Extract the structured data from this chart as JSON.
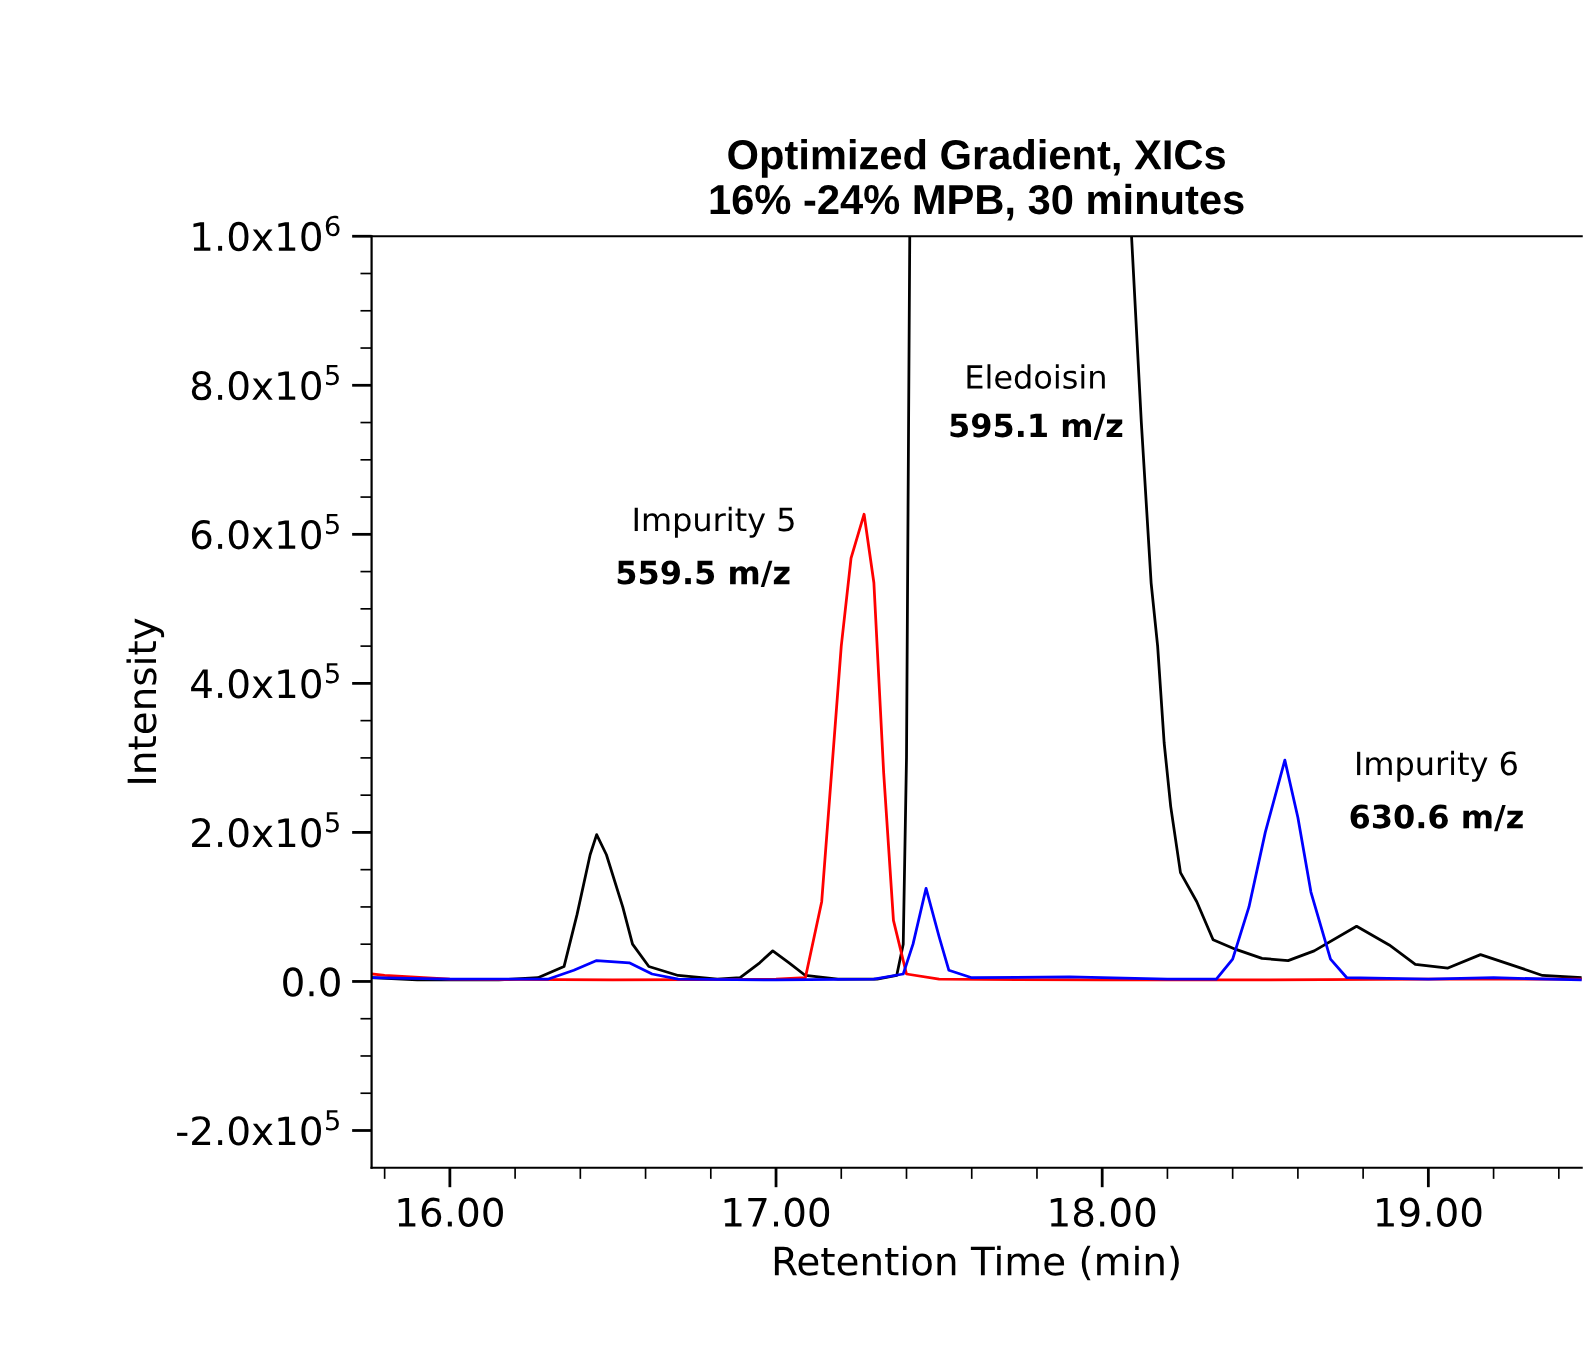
{
  "chart_data": {
    "type": "line",
    "title": "Optimized Gradient, XICs\n16% -24% MPB, 30 minutes",
    "xlabel": "Retention Time (min)",
    "ylabel": "Intensity",
    "xlim": [
      15.76,
      19.47
    ],
    "ylim": [
      -250000,
      1000000
    ],
    "xticks": [
      {
        "value": 15.8,
        "label": null
      },
      {
        "value": 16.0,
        "label": "16.00"
      },
      {
        "value": 16.2,
        "label": null
      },
      {
        "value": 16.4,
        "label": null
      },
      {
        "value": 16.6,
        "label": null
      },
      {
        "value": 16.8,
        "label": null
      },
      {
        "value": 17.0,
        "label": "17.00"
      },
      {
        "value": 17.2,
        "label": null
      },
      {
        "value": 17.4,
        "label": null
      },
      {
        "value": 17.6,
        "label": null
      },
      {
        "value": 17.8,
        "label": null
      },
      {
        "value": 18.0,
        "label": "18.00"
      },
      {
        "value": 18.2,
        "label": null
      },
      {
        "value": 18.4,
        "label": null
      },
      {
        "value": 18.6,
        "label": null
      },
      {
        "value": 18.8,
        "label": null
      },
      {
        "value": 19.0,
        "label": "19.00"
      },
      {
        "value": 19.2,
        "label": null
      },
      {
        "value": 19.4,
        "label": null
      }
    ],
    "yticks": [
      {
        "value": -200000,
        "label": "-2.0x10$^{5}$"
      },
      {
        "value": -150000,
        "label": null
      },
      {
        "value": -100000,
        "label": null
      },
      {
        "value": -50000,
        "label": null
      },
      {
        "value": 0,
        "label": "0.0"
      },
      {
        "value": 50000,
        "label": null
      },
      {
        "value": 100000,
        "label": null
      },
      {
        "value": 150000,
        "label": null
      },
      {
        "value": 200000,
        "label": "2.0x10$^{5}$"
      },
      {
        "value": 250000,
        "label": null
      },
      {
        "value": 300000,
        "label": null
      },
      {
        "value": 350000,
        "label": null
      },
      {
        "value": 400000,
        "label": "4.0x10$^{5}$"
      },
      {
        "value": 450000,
        "label": null
      },
      {
        "value": 500000,
        "label": null
      },
      {
        "value": 550000,
        "label": null
      },
      {
        "value": 600000,
        "label": "6.0x10$^{5}$"
      },
      {
        "value": 650000,
        "label": null
      },
      {
        "value": 700000,
        "label": null
      },
      {
        "value": 750000,
        "label": null
      },
      {
        "value": 800000,
        "label": "8.0x10$^{5}$"
      },
      {
        "value": 850000,
        "label": null
      },
      {
        "value": 900000,
        "label": null
      },
      {
        "value": 950000,
        "label": null
      },
      {
        "value": 1000000,
        "label": "1.0x10$^{6}$"
      }
    ],
    "grid": false,
    "legend": false,
    "marker": "none",
    "line_style": "solid",
    "series": [
      {
        "color": "#000000",
        "x": [
          15.76,
          15.9,
          16.15,
          16.27,
          16.35,
          16.39,
          16.43,
          16.45,
          16.48,
          16.53,
          16.56,
          16.61,
          16.7,
          16.82,
          16.89,
          16.95,
          16.99,
          17.04,
          17.09,
          17.19,
          17.31,
          17.37,
          17.39,
          17.4,
          17.41,
          17.75,
          18.09,
          18.12,
          18.15,
          18.17,
          18.19,
          18.21,
          18.24,
          18.29,
          18.34,
          18.41,
          18.49,
          18.57,
          18.65,
          18.78,
          18.88,
          18.96,
          19.06,
          19.16,
          19.25,
          19.35,
          19.47
        ],
        "values": [
          5000,
          2000,
          2000,
          5000,
          20000,
          90000,
          170000,
          197000,
          170000,
          100000,
          50000,
          20000,
          8000,
          3000,
          5000,
          25000,
          41000,
          25000,
          8000,
          3000,
          3000,
          8000,
          50000,
          300000,
          1000000,
          null,
          1000000,
          750000,
          535000,
          450000,
          320000,
          235000,
          146000,
          107000,
          56000,
          43000,
          31000,
          28000,
          41000,
          74000,
          49000,
          23000,
          18000,
          36000,
          23000,
          8000,
          5000
        ]
      },
      {
        "color": "#ff0000",
        "x": [
          15.76,
          15.8,
          16.0,
          16.5,
          17.0,
          17.09,
          17.14,
          17.2,
          17.23,
          17.27,
          17.3,
          17.33,
          17.36,
          17.4,
          17.5,
          18.0,
          18.5,
          19.0,
          19.47
        ],
        "values": [
          10000,
          8000,
          3000,
          2000,
          3000,
          5000,
          107000,
          450000,
          568000,
          627000,
          535000,
          280000,
          82000,
          10000,
          3000,
          2000,
          2000,
          3000,
          3000
        ]
      },
      {
        "color": "#0000ff",
        "x": [
          15.76,
          16.0,
          16.3,
          16.38,
          16.45,
          16.55,
          16.62,
          16.7,
          17.0,
          17.3,
          17.39,
          17.42,
          17.46,
          17.5,
          17.53,
          17.6,
          17.9,
          18.2,
          18.35,
          18.4,
          18.45,
          18.5,
          18.56,
          18.6,
          18.64,
          18.7,
          18.75,
          19.0,
          19.2,
          19.47
        ],
        "values": [
          5000,
          3000,
          3000,
          15000,
          28000,
          25000,
          10000,
          3000,
          2000,
          3000,
          10000,
          50000,
          125000,
          60000,
          15000,
          5000,
          6000,
          3000,
          3000,
          30000,
          100000,
          200000,
          297000,
          220000,
          120000,
          30000,
          5000,
          3000,
          5000,
          2000
        ]
      }
    ],
    "annotations": [
      "Impurity 5",
      "559.5 m/z",
      "Eledoisin",
      "595.1 m/z",
      "Impurity 6",
      "630.6 m/z"
    ]
  }
}
